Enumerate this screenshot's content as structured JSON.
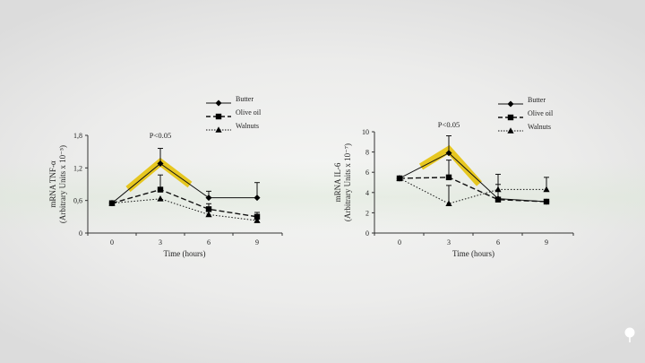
{
  "slide": {
    "background": "#ececeb",
    "highlight_color": "#e6c20a",
    "logo_icon": "lightbulb-icon"
  },
  "chart_data": [
    {
      "type": "line",
      "title": "",
      "annotation": "P<0.05",
      "xlabel": "Time (hours)",
      "ylabel_line1": "mRNA TNF-α",
      "ylabel_line2": "(Arbitrary Units x 10⁻⁵)",
      "x": [
        0,
        3,
        6,
        9
      ],
      "x_tick_labels": [
        "0",
        "3",
        "6",
        "9"
      ],
      "y_tick_labels": [
        "0",
        "0,6",
        "1,2",
        "1,8"
      ],
      "y_ticks": [
        0,
        0.6,
        1.2,
        1.8
      ],
      "ylim": [
        0,
        1.8
      ],
      "grid": false,
      "legend_position": "top-right",
      "series": [
        {
          "name": "Butter",
          "marker": "diamond",
          "line": "solid",
          "values": [
            0.55,
            1.28,
            0.65,
            0.65
          ],
          "error": [
            0,
            0.28,
            0.12,
            0.28
          ]
        },
        {
          "name": "Olive oil",
          "marker": "square",
          "line": "dashed",
          "values": [
            0.55,
            0.8,
            0.44,
            0.3
          ],
          "error": [
            0,
            0.27,
            0.1,
            0.08
          ]
        },
        {
          "name": "Walnuts",
          "marker": "triangle",
          "line": "dotted",
          "values": [
            0.55,
            0.63,
            0.34,
            0.23
          ],
          "error": [
            0,
            0,
            0,
            0
          ]
        }
      ]
    },
    {
      "type": "line",
      "title": "",
      "annotation": "P<0.05",
      "xlabel": "Time (hours)",
      "ylabel_line1": "mRNA IL-6",
      "ylabel_line2": "(Arbitrary Units x 10⁻⁷)",
      "x": [
        0,
        3,
        6,
        9
      ],
      "x_tick_labels": [
        "0",
        "3",
        "6",
        "9"
      ],
      "y_tick_labels": [
        "0",
        "2",
        "4",
        "6",
        "8",
        "10"
      ],
      "y_ticks": [
        0,
        2,
        4,
        6,
        8,
        10
      ],
      "ylim": [
        0,
        10
      ],
      "grid": false,
      "legend_position": "top-right",
      "series": [
        {
          "name": "Butter",
          "marker": "diamond",
          "line": "solid",
          "values": [
            5.4,
            7.9,
            3.4,
            3.1
          ],
          "error": [
            0,
            1.7,
            0,
            0
          ]
        },
        {
          "name": "Olive oil",
          "marker": "square",
          "line": "dashed",
          "values": [
            5.4,
            5.5,
            3.3,
            3.1
          ],
          "error": [
            0,
            1.7,
            1.5,
            0
          ]
        },
        {
          "name": "Walnuts",
          "marker": "triangle",
          "line": "dotted",
          "values": [
            5.4,
            2.9,
            4.3,
            4.3
          ],
          "error": [
            0,
            1.8,
            1.5,
            1.2
          ]
        }
      ]
    }
  ]
}
